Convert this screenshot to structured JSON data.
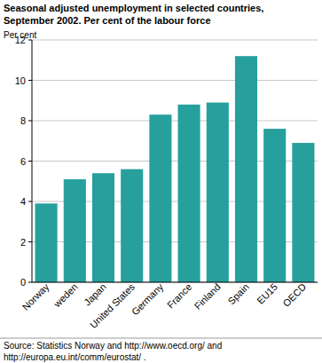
{
  "chart_data": {
    "type": "bar",
    "title": "Seasonal adjusted unemployment in selected countries,",
    "subtitle": "September 2002. Per cent of the labour force",
    "y_label": "Per cent",
    "source": [
      "Source: Statistics Norway and http://www.oecd.org/ and",
      "http://europa.eu.int/comm/eurostat/ ."
    ],
    "categories": [
      "Norway",
      "weden",
      "Japan",
      "United States",
      "Germany",
      "France",
      "Finland",
      "Spain",
      "EU15",
      "OECD"
    ],
    "values": [
      3.9,
      5.1,
      5.4,
      5.6,
      8.3,
      8.8,
      8.9,
      11.2,
      7.6,
      6.9
    ],
    "color": "#27a09d",
    "ylim": [
      0,
      12
    ],
    "yticks": [
      0,
      2,
      4,
      6,
      8,
      10,
      12
    ],
    "grid": true
  }
}
